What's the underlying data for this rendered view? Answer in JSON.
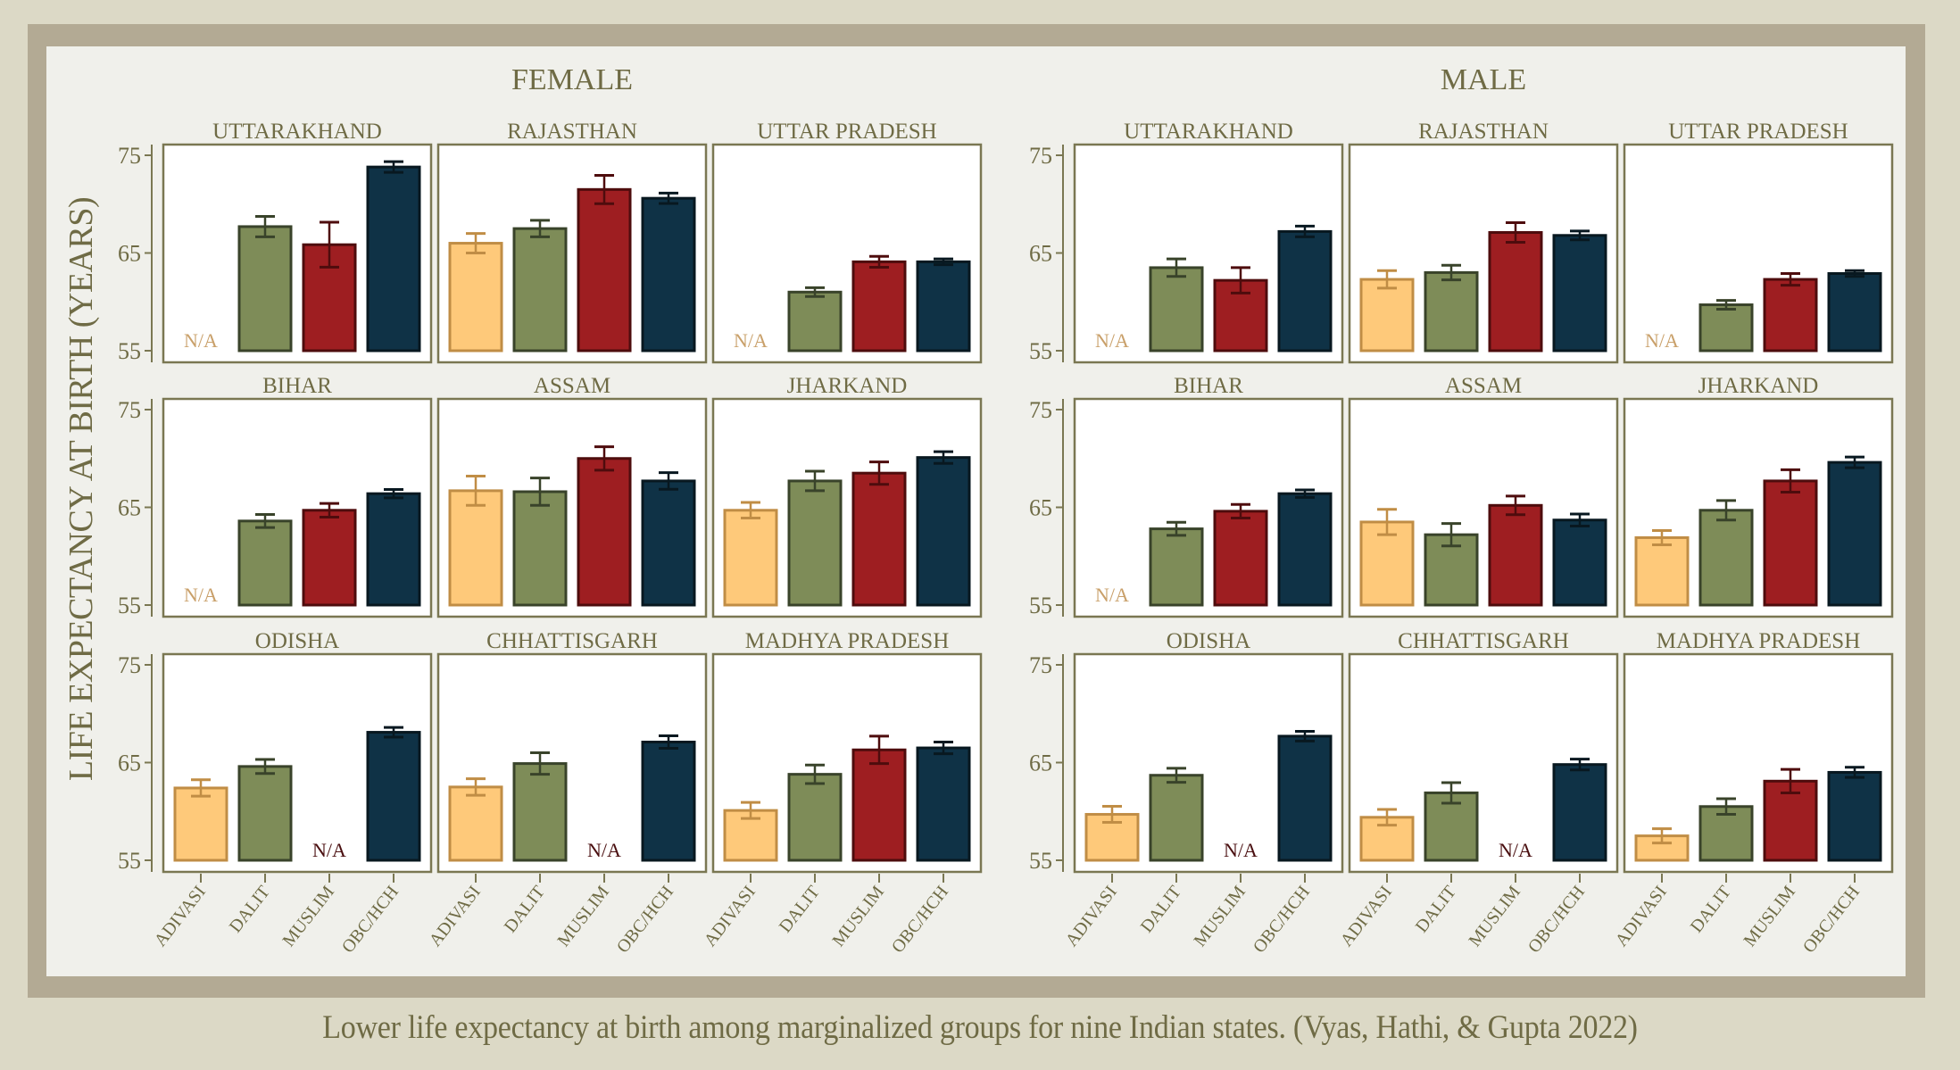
{
  "chart_data": {
    "type": "bar",
    "title": "",
    "ylabel": "LIFE EXPECTANCY AT BIRTH (YEARS)",
    "xlabel": "",
    "ylim": [
      55,
      75
    ],
    "yticks": [
      55,
      65,
      75
    ],
    "categories": [
      "ADIVASI",
      "DALIT",
      "MUSLIM",
      "OBC/HCH"
    ],
    "na_label": "N/A",
    "colors": {
      "ADIVASI": {
        "fill": "#fec97a",
        "stroke": "#c08d45",
        "na": "#c9a06a"
      },
      "DALIT": {
        "fill": "#7e8c58",
        "stroke": "#39432a",
        "na": "#39432a"
      },
      "MUSLIM": {
        "fill": "#9e1e21",
        "stroke": "#4e0c0d",
        "na": "#4a0f10"
      },
      "OBC/HCH": {
        "fill": "#0f3246",
        "stroke": "#081820",
        "na": "#081820"
      }
    },
    "sexes": [
      {
        "name": "FEMALE",
        "states": [
          {
            "name": "UTTARAKHAND",
            "values": [
              null,
              67.7,
              65.85,
              73.8
            ],
            "errors": [
              null,
              1.05,
              2.3,
              0.55
            ]
          },
          {
            "name": "RAJASTHAN",
            "values": [
              66.0,
              67.5,
              71.5,
              70.6
            ],
            "errors": [
              1.0,
              0.85,
              1.45,
              0.53
            ]
          },
          {
            "name": "UTTAR PRADESH",
            "values": [
              null,
              61.0,
              64.1,
              64.1
            ],
            "errors": [
              null,
              0.45,
              0.56,
              0.3
            ]
          },
          {
            "name": "BIHAR",
            "values": [
              null,
              63.6,
              64.7,
              66.4
            ],
            "errors": [
              null,
              0.67,
              0.7,
              0.43
            ]
          },
          {
            "name": "ASSAM",
            "values": [
              66.7,
              66.6,
              70.0,
              67.7
            ],
            "errors": [
              1.5,
              1.4,
              1.2,
              0.85
            ]
          },
          {
            "name": "JHARKAND",
            "values": [
              64.7,
              67.7,
              68.5,
              70.1
            ],
            "errors": [
              0.8,
              1.0,
              1.15,
              0.6
            ]
          },
          {
            "name": "ODISHA",
            "values": [
              62.4,
              64.6,
              null,
              68.1
            ],
            "errors": [
              0.84,
              0.72,
              null,
              0.5
            ]
          },
          {
            "name": "CHHATTISGARH",
            "values": [
              62.5,
              64.9,
              null,
              67.1
            ],
            "errors": [
              0.85,
              1.1,
              null,
              0.64
            ]
          },
          {
            "name": "MADHYA PRADESH",
            "values": [
              60.1,
              63.8,
              66.3,
              66.5
            ],
            "errors": [
              0.82,
              0.95,
              1.4,
              0.6
            ]
          }
        ]
      },
      {
        "name": "MALE",
        "states": [
          {
            "name": "UTTARAKHAND",
            "values": [
              null,
              63.5,
              62.2,
              67.2
            ],
            "errors": [
              null,
              0.9,
              1.3,
              0.55
            ]
          },
          {
            "name": "RAJASTHAN",
            "values": [
              62.3,
              63.0,
              67.1,
              66.8
            ],
            "errors": [
              0.9,
              0.75,
              1.0,
              0.45
            ]
          },
          {
            "name": "UTTAR PRADESH",
            "values": [
              null,
              59.7,
              62.3,
              62.9
            ],
            "errors": [
              null,
              0.45,
              0.6,
              0.3
            ]
          },
          {
            "name": "BIHAR",
            "values": [
              null,
              62.8,
              64.6,
              66.4
            ],
            "errors": [
              null,
              0.67,
              0.7,
              0.38
            ]
          },
          {
            "name": "ASSAM",
            "values": [
              63.5,
              62.2,
              65.2,
              63.7
            ],
            "errors": [
              1.3,
              1.15,
              0.95,
              0.62
            ]
          },
          {
            "name": "JHARKAND",
            "values": [
              61.9,
              64.7,
              67.7,
              69.6
            ],
            "errors": [
              0.73,
              1.0,
              1.15,
              0.55
            ]
          },
          {
            "name": "ODISHA",
            "values": [
              59.7,
              63.7,
              null,
              67.7
            ],
            "errors": [
              0.82,
              0.72,
              null,
              0.5
            ]
          },
          {
            "name": "CHHATTISGARH",
            "values": [
              59.4,
              61.9,
              null,
              64.8
            ],
            "errors": [
              0.8,
              1.05,
              null,
              0.55
            ]
          },
          {
            "name": "MADHYA PRADESH",
            "values": [
              57.5,
              60.5,
              63.1,
              64.0
            ],
            "errors": [
              0.73,
              0.8,
              1.2,
              0.52
            ]
          }
        ]
      }
    ],
    "grid": false,
    "legend": "none",
    "caption": "Lower life expectancy at birth among marginalized groups for nine Indian states. (Vyas, Hathi, & Gupta 2022)"
  },
  "theme": {
    "text_color": "#6f6b45",
    "panel_border": "#7a7752",
    "panel_fill": "#ffffff"
  }
}
